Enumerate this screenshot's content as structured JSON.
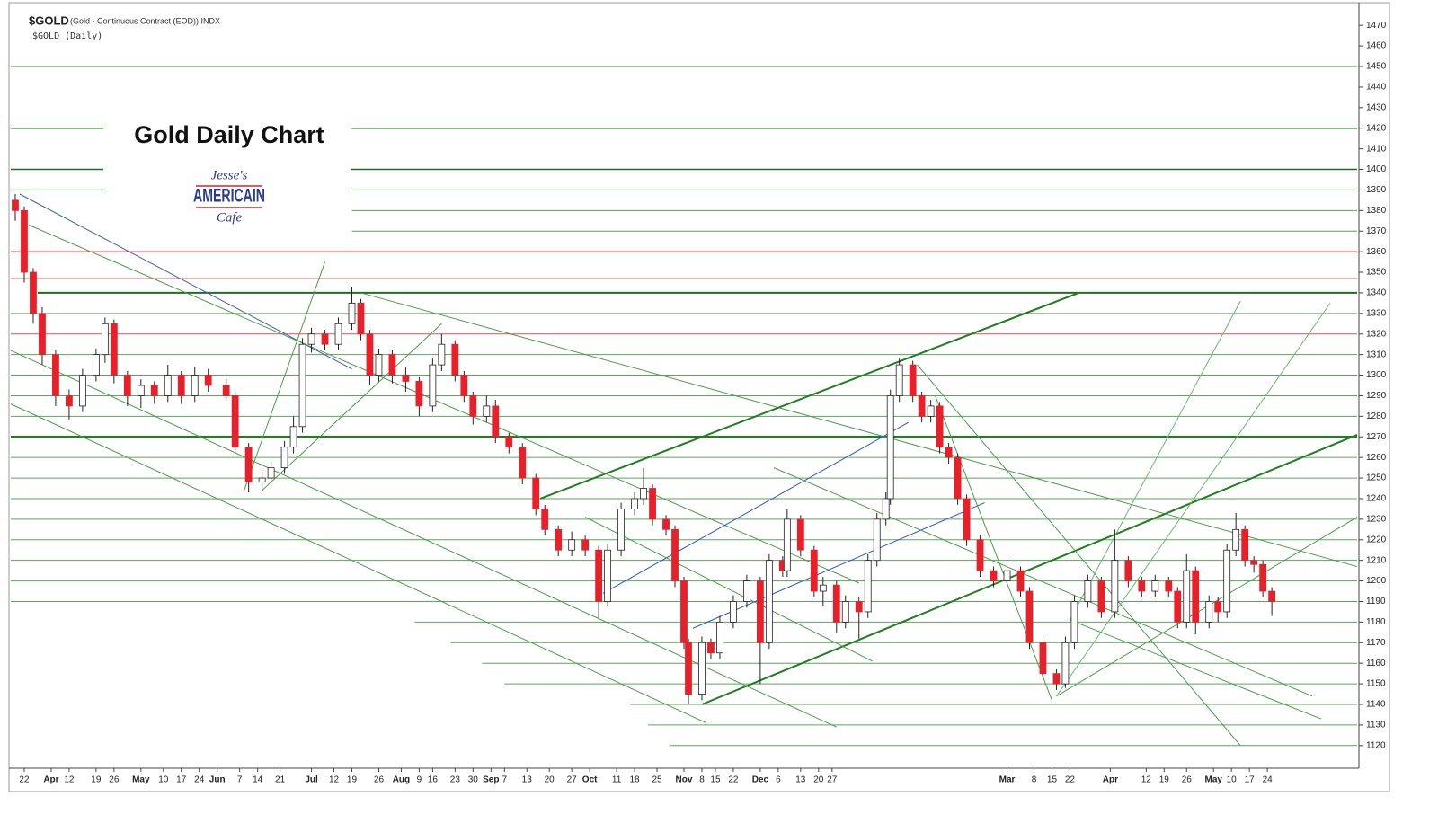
{
  "chart_data": {
    "type": "candlestick",
    "symbol": "$GOLD",
    "description": "(Gold - Continuous Contract (EOD)) INDX",
    "subtitle": "$GOLD (Daily)",
    "title": "Gold Daily Chart",
    "logo": {
      "line1": "Jesse's",
      "line2": "AMERICAIN",
      "line3": "Cafe"
    },
    "up_color": "#ffffff",
    "down_color": "#e8202a",
    "grid": false,
    "xlim": [
      0,
      300
    ],
    "ylim": [
      1109,
      1481
    ],
    "yticks": [
      1120,
      1130,
      1140,
      1150,
      1160,
      1170,
      1180,
      1190,
      1200,
      1210,
      1220,
      1230,
      1240,
      1250,
      1260,
      1270,
      1280,
      1290,
      1300,
      1310,
      1320,
      1330,
      1340,
      1350,
      1360,
      1370,
      1380,
      1390,
      1400,
      1410,
      1420,
      1430,
      1440,
      1450,
      1460,
      1470
    ],
    "xticks": [
      {
        "value": 3,
        "label": "22"
      },
      {
        "value": 9,
        "label": "Apr"
      },
      {
        "value": 13,
        "label": "12"
      },
      {
        "value": 19,
        "label": "19"
      },
      {
        "value": 23,
        "label": "26"
      },
      {
        "value": 29,
        "label": "May"
      },
      {
        "value": 34,
        "label": "10"
      },
      {
        "value": 38,
        "label": "17"
      },
      {
        "value": 42,
        "label": "24"
      },
      {
        "value": 46,
        "label": "Jun"
      },
      {
        "value": 51,
        "label": "7"
      },
      {
        "value": 55,
        "label": "14"
      },
      {
        "value": 60,
        "label": "21"
      },
      {
        "value": 67,
        "label": "Jul"
      },
      {
        "value": 72,
        "label": "12"
      },
      {
        "value": 76,
        "label": "19"
      },
      {
        "value": 82,
        "label": "26"
      },
      {
        "value": 87,
        "label": "Aug"
      },
      {
        "value": 91,
        "label": "9"
      },
      {
        "value": 94,
        "label": "16"
      },
      {
        "value": 99,
        "label": "23"
      },
      {
        "value": 103,
        "label": "30"
      },
      {
        "value": 107,
        "label": "Sep"
      },
      {
        "value": 110,
        "label": "7"
      },
      {
        "value": 115,
        "label": "13"
      },
      {
        "value": 120,
        "label": "20"
      },
      {
        "value": 125,
        "label": "27"
      },
      {
        "value": 129,
        "label": "Oct"
      },
      {
        "value": 135,
        "label": "11"
      },
      {
        "value": 139,
        "label": "18"
      },
      {
        "value": 144,
        "label": "25"
      },
      {
        "value": 150,
        "label": "Nov"
      },
      {
        "value": 154,
        "label": "8"
      },
      {
        "value": 157,
        "label": "15"
      },
      {
        "value": 161,
        "label": "22"
      },
      {
        "value": 167,
        "label": "Dec"
      },
      {
        "value": 171,
        "label": "6"
      },
      {
        "value": 176,
        "label": "13"
      },
      {
        "value": 180,
        "label": "20"
      },
      {
        "value": 183,
        "label": "27"
      },
      {
        "value": 222,
        "label": "Mar"
      },
      {
        "value": 228,
        "label": "8"
      },
      {
        "value": 232,
        "label": "15"
      },
      {
        "value": 236,
        "label": "22"
      },
      {
        "value": 245,
        "label": "Apr"
      },
      {
        "value": 253,
        "label": "12"
      },
      {
        "value": 257,
        "label": "19"
      },
      {
        "value": 262,
        "label": "26"
      },
      {
        "value": 268,
        "label": "May"
      },
      {
        "value": 272,
        "label": "10"
      },
      {
        "value": 276,
        "label": "17"
      },
      {
        "value": 280,
        "label": "24"
      }
    ],
    "x": [
      1,
      3,
      5,
      7,
      10,
      13,
      16,
      19,
      21,
      23,
      26,
      29,
      32,
      35,
      38,
      41,
      44,
      48,
      50,
      53,
      56,
      58,
      61,
      63,
      65,
      67,
      70,
      73,
      76,
      78,
      80,
      82,
      85,
      88,
      91,
      94,
      96,
      99,
      101,
      103,
      106,
      108,
      111,
      114,
      117,
      119,
      122,
      125,
      128,
      131,
      133,
      136,
      139,
      141,
      143,
      146,
      148,
      150,
      151,
      154,
      156,
      158,
      161,
      164,
      167,
      169,
      172,
      173,
      176,
      179,
      181,
      184,
      186,
      189,
      191,
      193,
      195,
      196,
      198,
      201,
      203,
      205,
      207,
      209,
      211,
      213,
      216,
      219,
      222,
      225,
      227,
      230,
      233,
      235,
      237,
      240,
      243,
      246,
      249,
      252,
      255,
      258,
      260,
      262,
      264,
      267,
      269,
      271,
      273,
      275,
      277,
      279,
      281
    ],
    "open": [
      1385,
      1380,
      1350,
      1330,
      1310,
      1290,
      1285,
      1300,
      1310,
      1325,
      1300,
      1290,
      1295,
      1290,
      1300,
      1290,
      1300,
      1295,
      1290,
      1265,
      1248,
      1250,
      1255,
      1265,
      1275,
      1315,
      1320,
      1315,
      1325,
      1335,
      1320,
      1300,
      1310,
      1300,
      1297,
      1285,
      1305,
      1315,
      1300,
      1290,
      1280,
      1285,
      1270,
      1265,
      1250,
      1235,
      1225,
      1215,
      1220,
      1215,
      1190,
      1215,
      1235,
      1240,
      1245,
      1230,
      1225,
      1200,
      1170,
      1145,
      1170,
      1165,
      1180,
      1190,
      1200,
      1170,
      1210,
      1205,
      1230,
      1215,
      1195,
      1198,
      1180,
      1190,
      1185,
      1210,
      1230,
      1240,
      1290,
      1305,
      1290,
      1280,
      1285,
      1265,
      1260,
      1240,
      1220,
      1205,
      1200,
      1205,
      1195,
      1170,
      1155,
      1150,
      1170,
      1190,
      1200,
      1185,
      1210,
      1200,
      1195,
      1200,
      1195,
      1180,
      1205,
      1180,
      1190,
      1185,
      1215,
      1225,
      1210,
      1208,
      1195
    ],
    "high": [
      1388,
      1382,
      1352,
      1333,
      1312,
      1293,
      1303,
      1313,
      1328,
      1327,
      1302,
      1298,
      1297,
      1305,
      1302,
      1304,
      1303,
      1298,
      1292,
      1267,
      1254,
      1258,
      1268,
      1280,
      1318,
      1323,
      1322,
      1328,
      1343,
      1337,
      1322,
      1313,
      1312,
      1304,
      1299,
      1308,
      1320,
      1317,
      1302,
      1292,
      1290,
      1288,
      1272,
      1267,
      1252,
      1237,
      1227,
      1224,
      1222,
      1217,
      1218,
      1238,
      1243,
      1255,
      1247,
      1232,
      1227,
      1202,
      1172,
      1173,
      1172,
      1183,
      1193,
      1203,
      1202,
      1213,
      1212,
      1235,
      1232,
      1217,
      1202,
      1200,
      1193,
      1192,
      1213,
      1233,
      1243,
      1293,
      1308,
      1307,
      1292,
      1288,
      1287,
      1267,
      1262,
      1242,
      1222,
      1207,
      1213,
      1207,
      1197,
      1172,
      1157,
      1173,
      1193,
      1203,
      1202,
      1225,
      1212,
      1202,
      1203,
      1202,
      1197,
      1213,
      1207,
      1193,
      1192,
      1218,
      1233,
      1227,
      1212,
      1210,
      1197
    ],
    "low": [
      1375,
      1345,
      1325,
      1305,
      1285,
      1278,
      1282,
      1297,
      1306,
      1296,
      1285,
      1284,
      1286,
      1287,
      1286,
      1287,
      1292,
      1288,
      1262,
      1243,
      1244,
      1247,
      1252,
      1262,
      1272,
      1311,
      1312,
      1312,
      1322,
      1317,
      1295,
      1297,
      1296,
      1292,
      1280,
      1282,
      1302,
      1297,
      1287,
      1276,
      1277,
      1267,
      1262,
      1247,
      1232,
      1222,
      1212,
      1212,
      1212,
      1182,
      1188,
      1212,
      1232,
      1237,
      1227,
      1222,
      1197,
      1167,
      1140,
      1142,
      1162,
      1162,
      1177,
      1187,
      1150,
      1167,
      1202,
      1202,
      1212,
      1192,
      1188,
      1175,
      1177,
      1172,
      1182,
      1207,
      1227,
      1237,
      1287,
      1287,
      1277,
      1277,
      1262,
      1257,
      1237,
      1217,
      1202,
      1197,
      1197,
      1192,
      1167,
      1152,
      1147,
      1148,
      1167,
      1187,
      1182,
      1182,
      1197,
      1192,
      1192,
      1192,
      1177,
      1177,
      1174,
      1177,
      1180,
      1182,
      1212,
      1207,
      1204,
      1192,
      1183
    ],
    "close": [
      1380,
      1350,
      1330,
      1310,
      1290,
      1285,
      1300,
      1310,
      1325,
      1300,
      1290,
      1295,
      1290,
      1300,
      1290,
      1300,
      1295,
      1290,
      1265,
      1248,
      1250,
      1255,
      1265,
      1275,
      1315,
      1320,
      1315,
      1325,
      1335,
      1320,
      1300,
      1310,
      1300,
      1297,
      1285,
      1305,
      1315,
      1300,
      1290,
      1280,
      1285,
      1270,
      1265,
      1250,
      1235,
      1225,
      1215,
      1220,
      1215,
      1190,
      1215,
      1235,
      1240,
      1245,
      1230,
      1225,
      1200,
      1170,
      1145,
      1170,
      1165,
      1180,
      1190,
      1200,
      1170,
      1210,
      1205,
      1230,
      1215,
      1195,
      1198,
      1180,
      1190,
      1185,
      1210,
      1230,
      1240,
      1290,
      1305,
      1290,
      1280,
      1285,
      1265,
      1260,
      1240,
      1220,
      1205,
      1200,
      1205,
      1195,
      1170,
      1155,
      1150,
      1170,
      1190,
      1200,
      1185,
      1210,
      1200,
      1195,
      1200,
      1195,
      1180,
      1205,
      1180,
      1190,
      1185,
      1215,
      1225,
      1210,
      1208,
      1195,
      1190
    ],
    "levels": [
      {
        "value": 1450,
        "x1": 0,
        "x2": 300,
        "color": "#3d8f3d",
        "width": 1
      },
      {
        "value": 1420,
        "x1": 0,
        "x2": 300,
        "color": "#1f6f1f",
        "width": 1.5
      },
      {
        "value": 1400,
        "x1": 0,
        "x2": 300,
        "color": "#1f6f1f",
        "width": 1.5
      },
      {
        "value": 1390,
        "x1": 0,
        "x2": 300,
        "color": "#3d8f3d",
        "width": 1.2
      },
      {
        "value": 1380,
        "x1": 76,
        "x2": 300,
        "color": "#5aa65a",
        "width": 1
      },
      {
        "value": 1370,
        "x1": 76,
        "x2": 300,
        "color": "#5aa65a",
        "width": 1
      },
      {
        "value": 1360,
        "x1": 0,
        "x2": 300,
        "color": "#e05050",
        "width": 1.2
      },
      {
        "value": 1347,
        "x1": 0,
        "x2": 300,
        "color": "#f08080",
        "width": 1
      },
      {
        "value": 1340,
        "x1": 6,
        "x2": 300,
        "color": "#1f6f1f",
        "width": 2
      },
      {
        "value": 1330,
        "x1": 0,
        "x2": 300,
        "color": "#5aa65a",
        "width": 1
      },
      {
        "value": 1320,
        "x1": 0,
        "x2": 300,
        "color": "#e05050",
        "width": 1
      },
      {
        "value": 1310,
        "x1": 0,
        "x2": 300,
        "color": "#5aa65a",
        "width": 1
      },
      {
        "value": 1300,
        "x1": 0,
        "x2": 300,
        "color": "#5aa65a",
        "width": 1
      },
      {
        "value": 1290,
        "x1": 0,
        "x2": 300,
        "color": "#5aa65a",
        "width": 1
      },
      {
        "value": 1280,
        "x1": 0,
        "x2": 300,
        "color": "#5aa65a",
        "width": 1
      },
      {
        "value": 1270,
        "x1": 0,
        "x2": 300,
        "color": "#1f7f1f",
        "width": 2.5
      },
      {
        "value": 1260,
        "x1": 0,
        "x2": 300,
        "color": "#5aa65a",
        "width": 1
      },
      {
        "value": 1250,
        "x1": 0,
        "x2": 300,
        "color": "#5aa65a",
        "width": 1
      },
      {
        "value": 1240,
        "x1": 0,
        "x2": 300,
        "color": "#5aa65a",
        "width": 1
      },
      {
        "value": 1230,
        "x1": 0,
        "x2": 300,
        "color": "#5aa65a",
        "width": 1
      },
      {
        "value": 1220,
        "x1": 0,
        "x2": 300,
        "color": "#5aa65a",
        "width": 1
      },
      {
        "value": 1210,
        "x1": 0,
        "x2": 300,
        "color": "#5aa65a",
        "width": 1
      },
      {
        "value": 1200,
        "x1": 0,
        "x2": 300,
        "color": "#5aa65a",
        "width": 1
      },
      {
        "value": 1190,
        "x1": 0,
        "x2": 300,
        "color": "#5aa65a",
        "width": 1
      },
      {
        "value": 1180,
        "x1": 90,
        "x2": 300,
        "color": "#5aa65a",
        "width": 1
      },
      {
        "value": 1170,
        "x1": 98,
        "x2": 300,
        "color": "#5aa65a",
        "width": 1
      },
      {
        "value": 1160,
        "x1": 105,
        "x2": 300,
        "color": "#5aa65a",
        "width": 1
      },
      {
        "value": 1150,
        "x1": 110,
        "x2": 300,
        "color": "#5aa65a",
        "width": 1
      },
      {
        "value": 1140,
        "x1": 138,
        "x2": 300,
        "color": "#5aa65a",
        "width": 1
      },
      {
        "value": 1130,
        "x1": 142,
        "x2": 300,
        "color": "#5aa65a",
        "width": 1
      },
      {
        "value": 1120,
        "x1": 147,
        "x2": 300,
        "color": "#5aa65a",
        "width": 1
      }
    ],
    "trendlines": [
      {
        "x": [
          0,
          155
        ],
        "y": [
          1286,
          1131
        ],
        "color": "#4a9a4a",
        "width": 1
      },
      {
        "x": [
          2,
          76
        ],
        "y": [
          1388,
          1303
        ],
        "color": "#4060a0",
        "width": 1
      },
      {
        "x": [
          4,
          189
        ],
        "y": [
          1373,
          1199
        ],
        "color": "#4a9a4a",
        "width": 1
      },
      {
        "x": [
          0,
          184
        ],
        "y": [
          1312,
          1129
        ],
        "color": "#4a9a4a",
        "width": 1
      },
      {
        "x": [
          78,
          300
        ],
        "y": [
          1340,
          1207
        ],
        "color": "#4a9a4a",
        "width": 1
      },
      {
        "x": [
          118,
          238
        ],
        "y": [
          1240,
          1340
        ],
        "color": "#1f7f1f",
        "width": 2
      },
      {
        "x": [
          154,
          300
        ],
        "y": [
          1140,
          1271
        ],
        "color": "#1f7f1f",
        "width": 2
      },
      {
        "x": [
          132,
          200
        ],
        "y": [
          1194,
          1277
        ],
        "color": "#3050d0",
        "width": 1
      },
      {
        "x": [
          152,
          217
        ],
        "y": [
          1177,
          1238
        ],
        "color": "#3050d0",
        "width": 1
      },
      {
        "x": [
          202,
          274
        ],
        "y": [
          1305,
          1120
        ],
        "color": "#4a9a4a",
        "width": 1
      },
      {
        "x": [
          206,
          232
        ],
        "y": [
          1290,
          1142
        ],
        "color": "#4a9a4a",
        "width": 1
      },
      {
        "x": [
          233,
          300
        ],
        "y": [
          1144,
          1231
        ],
        "color": "#4a9a4a",
        "width": 1
      },
      {
        "x": [
          233,
          294
        ],
        "y": [
          1144,
          1335
        ],
        "color": "#6ab86a",
        "width": 1
      },
      {
        "x": [
          236,
          274
        ],
        "y": [
          1181,
          1336
        ],
        "color": "#6ab86a",
        "width": 1
      },
      {
        "x": [
          52,
          70
        ],
        "y": [
          1244,
          1355
        ],
        "color": "#4a9a4a",
        "width": 1
      },
      {
        "x": [
          56,
          96
        ],
        "y": [
          1244,
          1325
        ],
        "color": "#4a9a4a",
        "width": 1
      },
      {
        "x": [
          236,
          292
        ],
        "y": [
          1181,
          1133
        ],
        "color": "#4a9a4a",
        "width": 1
      },
      {
        "x": [
          170,
          290
        ],
        "y": [
          1255,
          1144
        ],
        "color": "#4a9a4a",
        "width": 1
      },
      {
        "x": [
          128,
          192
        ],
        "y": [
          1231,
          1161
        ],
        "color": "#4a9a4a",
        "width": 1
      }
    ]
  }
}
